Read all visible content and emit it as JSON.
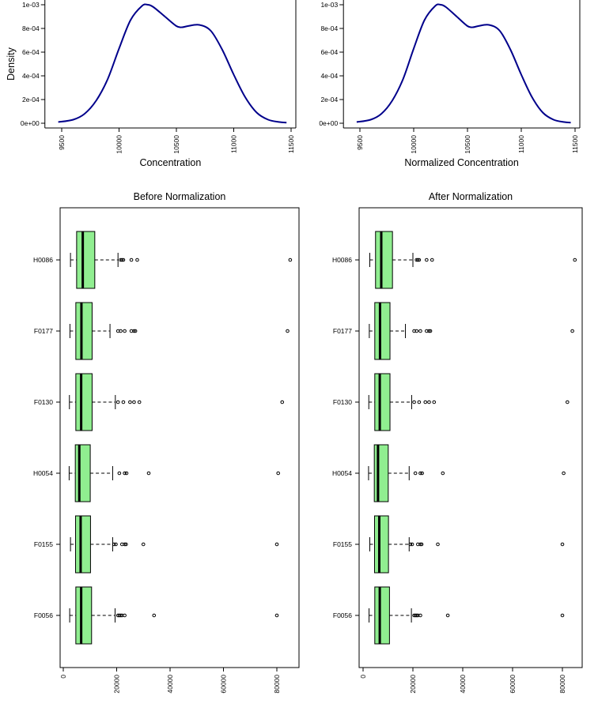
{
  "colors": {
    "density_line": "#00008B",
    "box_fill": "#90EE90",
    "axis": "#000000"
  },
  "chart_data": [
    {
      "type": "line",
      "panel": "density-before",
      "title": "",
      "xlabel": "Concentration",
      "ylabel": "Density",
      "xlim": [
        9450,
        11500
      ],
      "ylim": [
        0,
        0.001
      ],
      "x_ticks": [
        9500,
        10000,
        10500,
        11000,
        11500
      ],
      "x_tick_labels": [
        "9500",
        "10000",
        "10500",
        "11000",
        "11500"
      ],
      "y_ticks": [
        0,
        0.0002,
        0.0004,
        0.0006,
        0.0008,
        0.001
      ],
      "y_tick_labels": [
        "0e+00",
        "2e-04",
        "4e-04",
        "6e-04",
        "8e-04",
        "1e-03"
      ],
      "series": [
        {
          "x": [
            9470,
            9600,
            9700,
            9800,
            9900,
            10000,
            10100,
            10200,
            10250,
            10300,
            10400,
            10500,
            10550,
            10600,
            10700,
            10800,
            10900,
            11000,
            11100,
            11200,
            11300,
            11400,
            11460
          ],
          "y": [
            1e-05,
            3e-05,
            8e-05,
            0.00019,
            0.00037,
            0.00063,
            0.00087,
            0.00099,
            0.001,
            0.00098,
            0.0009,
            0.00082,
            0.00081,
            0.00082,
            0.00083,
            0.00078,
            0.00062,
            0.00041,
            0.00022,
            9e-05,
            3e-05,
            1e-05,
            5e-06
          ]
        }
      ]
    },
    {
      "type": "line",
      "panel": "density-after",
      "title": "",
      "xlabel": "Normalized Concentration",
      "ylabel": "",
      "xlim": [
        9450,
        11500
      ],
      "ylim": [
        0,
        0.001
      ],
      "x_ticks": [
        9500,
        10000,
        10500,
        11000,
        11500
      ],
      "x_tick_labels": [
        "9500",
        "10000",
        "10500",
        "11000",
        "11500"
      ],
      "y_ticks": [
        0,
        0.0002,
        0.0004,
        0.0006,
        0.0008,
        0.001
      ],
      "y_tick_labels": [
        "0e+00",
        "2e-04",
        "4e-04",
        "6e-04",
        "8e-04",
        "1e-03"
      ],
      "series": [
        {
          "x": [
            9470,
            9600,
            9700,
            9800,
            9900,
            10000,
            10100,
            10200,
            10250,
            10300,
            10400,
            10500,
            10550,
            10600,
            10700,
            10800,
            10900,
            11000,
            11100,
            11200,
            11300,
            11400,
            11460
          ],
          "y": [
            1e-05,
            3e-05,
            8e-05,
            0.00019,
            0.00037,
            0.00063,
            0.00087,
            0.00099,
            0.001,
            0.00098,
            0.0009,
            0.00082,
            0.00081,
            0.00082,
            0.00083,
            0.00078,
            0.00062,
            0.00041,
            0.00022,
            9e-05,
            3e-05,
            1e-05,
            5e-06
          ]
        }
      ]
    },
    {
      "type": "box",
      "panel": "box-before",
      "title": "Before Normalization",
      "xlabel": "",
      "ylabel": "",
      "xlim": [
        -1000,
        88500
      ],
      "x_ticks": [
        0,
        20000,
        40000,
        60000,
        80000
      ],
      "x_tick_labels": [
        "0",
        "20000",
        "40000",
        "60000",
        "80000"
      ],
      "categories": [
        "H0086",
        "F0177",
        "F0130",
        "H0054",
        "F0155",
        "F0056"
      ],
      "boxes": [
        {
          "min": 2700,
          "q1": 5000,
          "median": 7300,
          "q3": 11800,
          "max": 20500,
          "outliers": [
            21500,
            22000,
            22500,
            25500,
            27700,
            85000
          ]
        },
        {
          "min": 2500,
          "q1": 4700,
          "median": 6800,
          "q3": 10800,
          "max": 17500,
          "outliers": [
            20500,
            21500,
            23000,
            25500,
            26500,
            27000,
            84000
          ]
        },
        {
          "min": 2300,
          "q1": 4700,
          "median": 6700,
          "q3": 10800,
          "max": 19500,
          "outliers": [
            20500,
            22500,
            25000,
            26500,
            28500,
            82000
          ]
        },
        {
          "min": 2200,
          "q1": 4500,
          "median": 6000,
          "q3": 10100,
          "max": 18500,
          "outliers": [
            21000,
            23000,
            23700,
            32000,
            80500
          ]
        },
        {
          "min": 2700,
          "q1": 4600,
          "median": 6500,
          "q3": 10200,
          "max": 18500,
          "outliers": [
            19000,
            19700,
            22000,
            23000,
            23500,
            30000,
            80000
          ]
        },
        {
          "min": 2400,
          "q1": 4700,
          "median": 6700,
          "q3": 10600,
          "max": 19400,
          "outliers": [
            20500,
            21000,
            21500,
            22000,
            23000,
            34000,
            80000
          ]
        }
      ]
    },
    {
      "type": "box",
      "panel": "box-after",
      "title": "After Normalization",
      "xlabel": "",
      "ylabel": "",
      "xlim": [
        -1000,
        88500
      ],
      "x_ticks": [
        0,
        20000,
        40000,
        60000,
        80000
      ],
      "x_tick_labels": [
        "0",
        "20000",
        "40000",
        "60000",
        "80000"
      ],
      "categories": [
        "H0086",
        "F0177",
        "F0130",
        "H0054",
        "F0155",
        "F0056"
      ],
      "boxes": [
        {
          "min": 2700,
          "q1": 5000,
          "median": 7300,
          "q3": 11800,
          "max": 20000,
          "outliers": [
            21500,
            22000,
            22500,
            25500,
            27700,
            85000
          ]
        },
        {
          "min": 2500,
          "q1": 4700,
          "median": 6800,
          "q3": 10800,
          "max": 17000,
          "outliers": [
            20500,
            21500,
            23000,
            25500,
            26500,
            27000,
            84000
          ]
        },
        {
          "min": 2300,
          "q1": 4700,
          "median": 6700,
          "q3": 10800,
          "max": 19500,
          "outliers": [
            20500,
            22500,
            25000,
            26500,
            28500,
            82000
          ]
        },
        {
          "min": 2200,
          "q1": 4500,
          "median": 6000,
          "q3": 10100,
          "max": 18500,
          "outliers": [
            21000,
            23000,
            23700,
            32000,
            80500
          ]
        },
        {
          "min": 2700,
          "q1": 4600,
          "median": 6500,
          "q3": 10200,
          "max": 18500,
          "outliers": [
            19000,
            19700,
            22000,
            23000,
            23500,
            30000,
            80000
          ]
        },
        {
          "min": 2400,
          "q1": 4700,
          "median": 6700,
          "q3": 10600,
          "max": 19400,
          "outliers": [
            20500,
            21000,
            21500,
            22000,
            23000,
            34000,
            80000
          ]
        }
      ]
    }
  ]
}
